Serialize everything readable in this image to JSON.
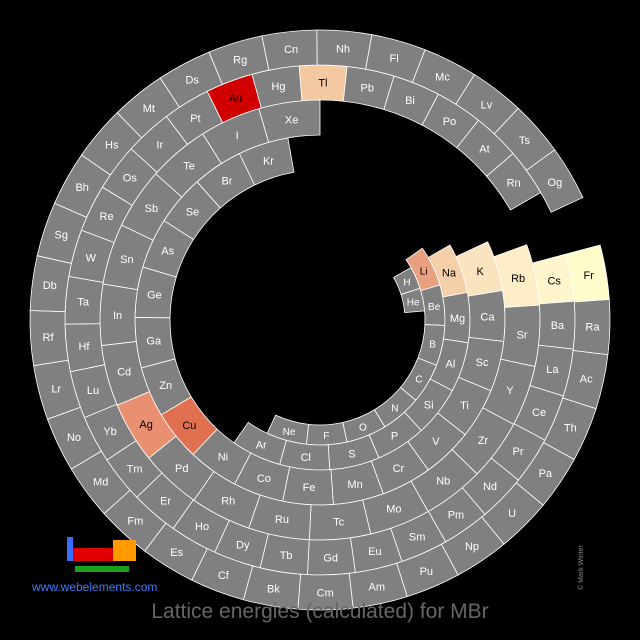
{
  "title": "Lattice energies (calculated) for MBr",
  "site_link": "www.webelements.com",
  "credit": "© Mark Winter",
  "colors": {
    "background": "#000000",
    "cell_default": "#808080",
    "cell_border": "#ffffff",
    "label": "#ffffff",
    "label_highlight": "#000000",
    "logo_blue": "#3a6cff",
    "logo_red": "#e00000",
    "logo_orange": "#ff9a00",
    "logo_green": "#1aa01a"
  },
  "chart_data": {
    "type": "heatmap",
    "layout": "spiral periodic table",
    "rings": [
      {
        "ring": 1,
        "elements": [
          "H",
          "He"
        ]
      },
      {
        "ring": 2,
        "elements": [
          "Li",
          "Be",
          "B",
          "C",
          "N",
          "O",
          "F",
          "Ne"
        ]
      },
      {
        "ring": 3,
        "elements": [
          "Na",
          "Mg",
          "Al",
          "Si",
          "P",
          "S",
          "Cl",
          "Ar"
        ]
      },
      {
        "ring": 4,
        "elements": [
          "K",
          "Ca",
          "Sc",
          "Ti",
          "V",
          "Cr",
          "Mn",
          "Fe",
          "Co",
          "Ni",
          "Cu",
          "Zn",
          "Ga",
          "Ge",
          "As",
          "Se",
          "Br",
          "Kr"
        ]
      },
      {
        "ring": 5,
        "elements": [
          "Rb",
          "Sr",
          "Y",
          "Zr",
          "Nb",
          "Mo",
          "Tc",
          "Ru",
          "Rh",
          "Pd",
          "Ag",
          "Cd",
          "In",
          "Sn",
          "Sb",
          "Te",
          "I",
          "Xe"
        ]
      },
      {
        "ring": 6,
        "elements": [
          "Cs",
          "Ba",
          "La",
          "Ce",
          "Pr",
          "Nd",
          "Pm",
          "Sm",
          "Eu",
          "Gd",
          "Tb",
          "Dy",
          "Ho",
          "Er",
          "Tm",
          "Yb",
          "Lu",
          "Hf",
          "Ta",
          "W",
          "Re",
          "Os",
          "Ir",
          "Pt",
          "Au",
          "Hg",
          "Tl",
          "Pb",
          "Bi",
          "Po",
          "At",
          "Rn"
        ]
      },
      {
        "ring": 7,
        "elements": [
          "Fr",
          "Ra",
          "Ac",
          "Th",
          "Pa",
          "U",
          "Np",
          "Pu",
          "Am",
          "Cm",
          "Bk",
          "Cf",
          "Es",
          "Fm",
          "Md",
          "No",
          "Lr",
          "Rf",
          "Db",
          "Sg",
          "Bh",
          "Hs",
          "Mt",
          "Ds",
          "Rg",
          "Cn",
          "Nh",
          "Fl",
          "Mc",
          "Lv",
          "Ts",
          "Og"
        ]
      }
    ],
    "highlighted": [
      {
        "element": "Li",
        "color": "#e8a080"
      },
      {
        "element": "Na",
        "color": "#f4cfa8"
      },
      {
        "element": "K",
        "color": "#fae4c0"
      },
      {
        "element": "Rb",
        "color": "#fdeec8"
      },
      {
        "element": "Cs",
        "color": "#fff5cc"
      },
      {
        "element": "Fr",
        "color": "#fffccc"
      },
      {
        "element": "Cu",
        "color": "#e07050"
      },
      {
        "element": "Ag",
        "color": "#e89070"
      },
      {
        "element": "Au",
        "color": "#d00000"
      },
      {
        "element": "Tl",
        "color": "#f4c8a0"
      }
    ]
  }
}
